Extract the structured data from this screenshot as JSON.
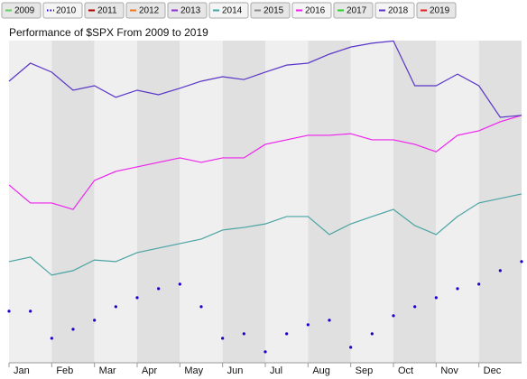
{
  "chart_data": {
    "type": "line",
    "title": "Performance of $SPX From 2009 to 2019",
    "x": [
      0,
      0.5,
      1,
      1.5,
      2,
      2.5,
      3,
      3.5,
      4,
      4.5,
      5,
      5.5,
      6,
      6.5,
      7,
      7.5,
      8,
      8.5,
      9,
      9.5,
      10,
      10.5,
      11,
      11.5,
      12
    ],
    "xlim": [
      0,
      12
    ],
    "xticks": [
      {
        "value": 0,
        "label": "Jan"
      },
      {
        "value": 1,
        "label": "Feb"
      },
      {
        "value": 2,
        "label": "Mar"
      },
      {
        "value": 3,
        "label": "Apr"
      },
      {
        "value": 4,
        "label": "May"
      },
      {
        "value": 5,
        "label": "Jun"
      },
      {
        "value": 6,
        "label": "Jul"
      },
      {
        "value": 7,
        "label": "Aug"
      },
      {
        "value": 8,
        "label": "Sep"
      },
      {
        "value": 9,
        "label": "Oct"
      },
      {
        "value": 10,
        "label": "Nov"
      },
      {
        "value": 11,
        "label": "Dec"
      }
    ],
    "ylim": [
      0,
      100
    ],
    "series": [
      {
        "name": "2009",
        "color": "#66cc66",
        "visible": false
      },
      {
        "name": "2010",
        "color": "#1a00cc",
        "visible": true,
        "dotted": true,
        "values": [
          16.0,
          16.0,
          7.6,
          10.4,
          13.2,
          17.4,
          20.2,
          23.0,
          24.4,
          17.4,
          7.6,
          9.0,
          3.4,
          9.0,
          11.8,
          13.2,
          4.8,
          9.0,
          14.6,
          17.4,
          20.2,
          23.0,
          24.4,
          28.6,
          31.4
        ]
      },
      {
        "name": "2011",
        "color": "#aa0000",
        "visible": false
      },
      {
        "name": "2012",
        "color": "#ee7722",
        "visible": false
      },
      {
        "name": "2013",
        "color": "#8833cc",
        "visible": false
      },
      {
        "name": "2014",
        "color": "#4aa3a3",
        "visible": true,
        "values": [
          31.4,
          32.8,
          27.2,
          28.6,
          31.9,
          31.4,
          34.2,
          35.6,
          37.0,
          38.4,
          41.2,
          42.0,
          43.1,
          45.4,
          45.4,
          39.8,
          43.1,
          45.4,
          47.6,
          42.6,
          39.8,
          45.4,
          49.6,
          51.0,
          52.4
        ]
      },
      {
        "name": "2015",
        "color": "#888888",
        "visible": false
      },
      {
        "name": "2016",
        "color": "#ee22ee",
        "visible": true,
        "values": [
          55.2,
          49.6,
          49.6,
          47.6,
          56.6,
          59.4,
          60.8,
          62.2,
          63.6,
          62.2,
          63.6,
          63.6,
          67.8,
          69.2,
          70.6,
          70.6,
          71.1,
          69.2,
          69.2,
          67.8,
          65.5,
          70.6,
          72.0,
          74.8,
          76.8
        ]
      },
      {
        "name": "2017",
        "color": "#33cc33",
        "visible": false
      },
      {
        "name": "2018",
        "color": "#5a35c8",
        "visible": true,
        "values": [
          87.4,
          93.0,
          90.2,
          84.6,
          86.0,
          82.4,
          84.6,
          83.2,
          85.2,
          87.4,
          88.8,
          87.9,
          90.2,
          92.4,
          93.0,
          95.8,
          98.0,
          99.2,
          99.9,
          86.0,
          86.0,
          89.6,
          86.0,
          76.2,
          76.8
        ]
      },
      {
        "name": "2019",
        "color": "#dd2222",
        "visible": false
      }
    ]
  }
}
